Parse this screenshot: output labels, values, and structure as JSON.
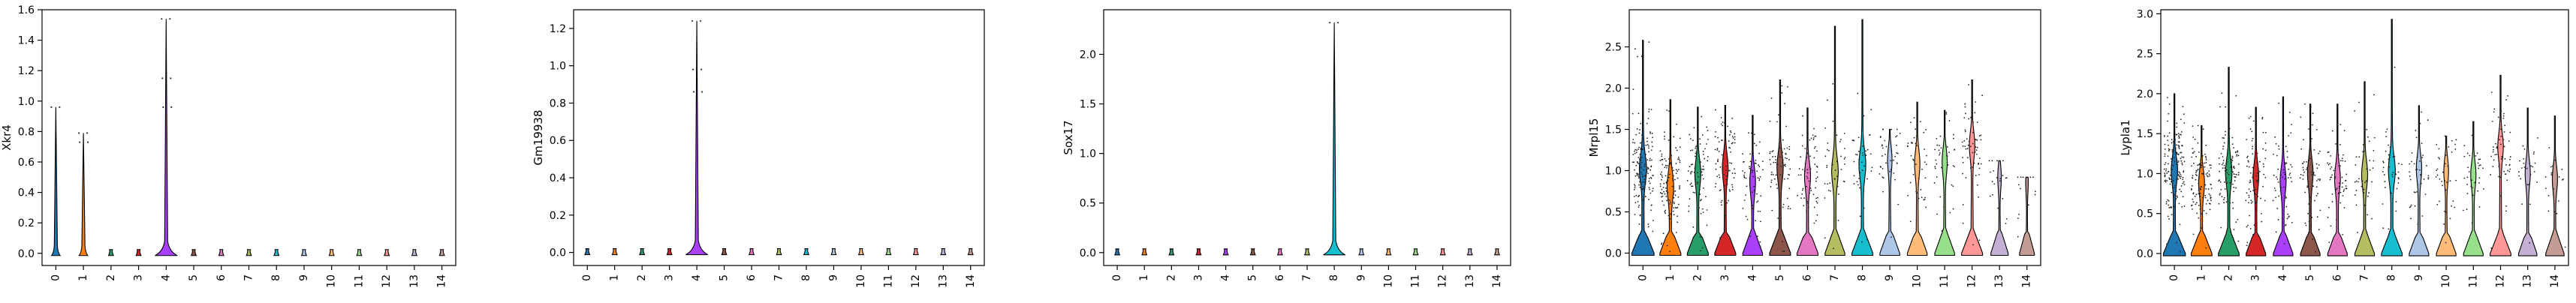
{
  "figure": {
    "type": "violin-stacked-row",
    "background": "#ffffff"
  },
  "palette": [
    "#1f77b4",
    "#ff7f0e",
    "#279e68",
    "#d62728",
    "#aa40fc",
    "#8c564b",
    "#e377c2",
    "#b5bd61",
    "#17becf",
    "#aec7e8",
    "#ffbb78",
    "#98df8a",
    "#ff9896",
    "#c5b0d5",
    "#c49c94"
  ],
  "chart_data": [
    {
      "type": "violin",
      "ylabel": "Xkr4",
      "categories": [
        "0",
        "1",
        "2",
        "3",
        "4",
        "5",
        "6",
        "7",
        "8",
        "9",
        "10",
        "11",
        "12",
        "13",
        "14"
      ],
      "ylim": [
        -0.08,
        1.6
      ],
      "yticks": [
        "0.0",
        "0.2",
        "0.4",
        "0.6",
        "0.8",
        "1.0",
        "1.2",
        "1.4",
        "1.6"
      ],
      "ytick_values": [
        0,
        0.2,
        0.4,
        0.6,
        0.8,
        1.0,
        1.2,
        1.4,
        1.6
      ],
      "violin_max": [
        0.96,
        0.79,
        0,
        0,
        1.54,
        0,
        0,
        0,
        0,
        0,
        0,
        0,
        0,
        0,
        0
      ],
      "violin_width": [
        0.35,
        0.35,
        0.2,
        0.2,
        0.9,
        0.2,
        0.2,
        0.2,
        0.2,
        0.2,
        0.2,
        0.2,
        0.2,
        0.2,
        0.2
      ],
      "outliers": [
        [
          0.96
        ],
        [
          0.79,
          0.73
        ],
        [],
        [],
        [
          1.54,
          1.15,
          0.96
        ],
        [],
        [],
        [],
        [],
        [],
        [],
        [],
        [],
        [],
        []
      ]
    },
    {
      "type": "violin",
      "ylabel": "Gm19938",
      "categories": [
        "0",
        "1",
        "2",
        "3",
        "4",
        "5",
        "6",
        "7",
        "8",
        "9",
        "10",
        "11",
        "12",
        "13",
        "14"
      ],
      "ylim": [
        -0.07,
        1.3
      ],
      "yticks": [
        "0.0",
        "0.2",
        "0.4",
        "0.6",
        "0.8",
        "1.0",
        "1.2"
      ],
      "ytick_values": [
        0,
        0.2,
        0.4,
        0.6,
        0.8,
        1.0,
        1.2
      ],
      "violin_max": [
        0,
        0,
        0,
        0,
        1.24,
        0,
        0,
        0,
        0,
        0,
        0,
        0,
        0,
        0,
        0
      ],
      "violin_width": [
        0.2,
        0.2,
        0.2,
        0.2,
        0.9,
        0.2,
        0.2,
        0.2,
        0.2,
        0.2,
        0.2,
        0.2,
        0.2,
        0.2,
        0.2
      ],
      "outliers": [
        [],
        [],
        [],
        [],
        [
          1.24,
          0.98,
          0.86
        ],
        [],
        [],
        [],
        [],
        [],
        [],
        [],
        [],
        [],
        []
      ]
    },
    {
      "type": "violin",
      "ylabel": "Sox17",
      "categories": [
        "0",
        "1",
        "2",
        "3",
        "4",
        "5",
        "6",
        "7",
        "8",
        "9",
        "10",
        "11",
        "12",
        "13",
        "14"
      ],
      "ylim": [
        -0.13,
        2.45
      ],
      "yticks": [
        "0.0",
        "0.5",
        "1.0",
        "1.5",
        "2.0"
      ],
      "ytick_values": [
        0,
        0.5,
        1.0,
        1.5,
        2.0
      ],
      "violin_max": [
        0,
        0,
        0,
        0,
        0,
        0,
        0,
        0,
        2.32,
        0,
        0,
        0,
        0,
        0,
        0
      ],
      "violin_width": [
        0.2,
        0.2,
        0.2,
        0.2,
        0.2,
        0.2,
        0.2,
        0.2,
        0.9,
        0.2,
        0.2,
        0.2,
        0.2,
        0.2,
        0.2
      ],
      "outliers": [
        [],
        [],
        [],
        [],
        [],
        [],
        [],
        [],
        [
          2.32
        ],
        [],
        [],
        [],
        [],
        [],
        []
      ]
    },
    {
      "type": "violin",
      "ylabel": "Mrpl15",
      "categories": [
        "0",
        "1",
        "2",
        "3",
        "4",
        "5",
        "6",
        "7",
        "8",
        "9",
        "10",
        "11",
        "12",
        "13",
        "14"
      ],
      "ylim": [
        -0.15,
        2.95
      ],
      "yticks": [
        "0.0",
        "0.5",
        "1.0",
        "1.5",
        "2.0",
        "2.5"
      ],
      "ytick_values": [
        0,
        0.5,
        1.0,
        1.5,
        2.0,
        2.5
      ],
      "violin_max": [
        2.58,
        1.86,
        1.77,
        1.79,
        1.67,
        2.1,
        1.76,
        2.75,
        2.83,
        1.5,
        1.83,
        1.73,
        2.1,
        1.12,
        0.92
      ],
      "violin_width": [
        0.9,
        0.85,
        0.85,
        0.85,
        0.8,
        0.85,
        0.85,
        0.8,
        0.85,
        0.8,
        0.8,
        0.8,
        0.85,
        0.7,
        0.6
      ],
      "violin_mode": [
        1.03,
        0.82,
        0.98,
        1.05,
        0.88,
        1.05,
        0.95,
        1.0,
        1.08,
        1.15,
        1.1,
        1.12,
        1.32,
        0.95,
        0.9
      ],
      "scatter_density": [
        160,
        120,
        80,
        80,
        60,
        70,
        70,
        40,
        40,
        40,
        40,
        40,
        60,
        20,
        15
      ]
    },
    {
      "type": "violin",
      "ylabel": "Lypla1",
      "categories": [
        "0",
        "1",
        "2",
        "3",
        "4",
        "5",
        "6",
        "7",
        "8",
        "9",
        "10",
        "11",
        "12",
        "13",
        "14"
      ],
      "ylim": [
        -0.15,
        3.05
      ],
      "yticks": [
        "0.0",
        "0.5",
        "1.0",
        "1.5",
        "2.0",
        "2.5",
        "3.0"
      ],
      "ytick_values": [
        0,
        0.5,
        1.0,
        1.5,
        2.0,
        2.5,
        3.0
      ],
      "violin_max": [
        2.0,
        1.6,
        2.33,
        1.83,
        1.96,
        1.87,
        1.87,
        2.15,
        2.93,
        1.85,
        1.47,
        1.65,
        2.23,
        1.82,
        1.72
      ],
      "violin_width": [
        0.9,
        0.85,
        0.85,
        0.8,
        0.8,
        0.8,
        0.8,
        0.8,
        0.85,
        0.8,
        0.8,
        0.8,
        0.85,
        0.75,
        0.75
      ],
      "violin_mode": [
        1.05,
        0.9,
        1.02,
        0.98,
        0.92,
        1.02,
        0.95,
        1.0,
        1.05,
        1.08,
        1.05,
        1.0,
        1.35,
        1.02,
        0.95
      ],
      "scatter_density": [
        160,
        120,
        90,
        80,
        60,
        70,
        60,
        40,
        40,
        40,
        40,
        35,
        60,
        25,
        20
      ]
    }
  ]
}
